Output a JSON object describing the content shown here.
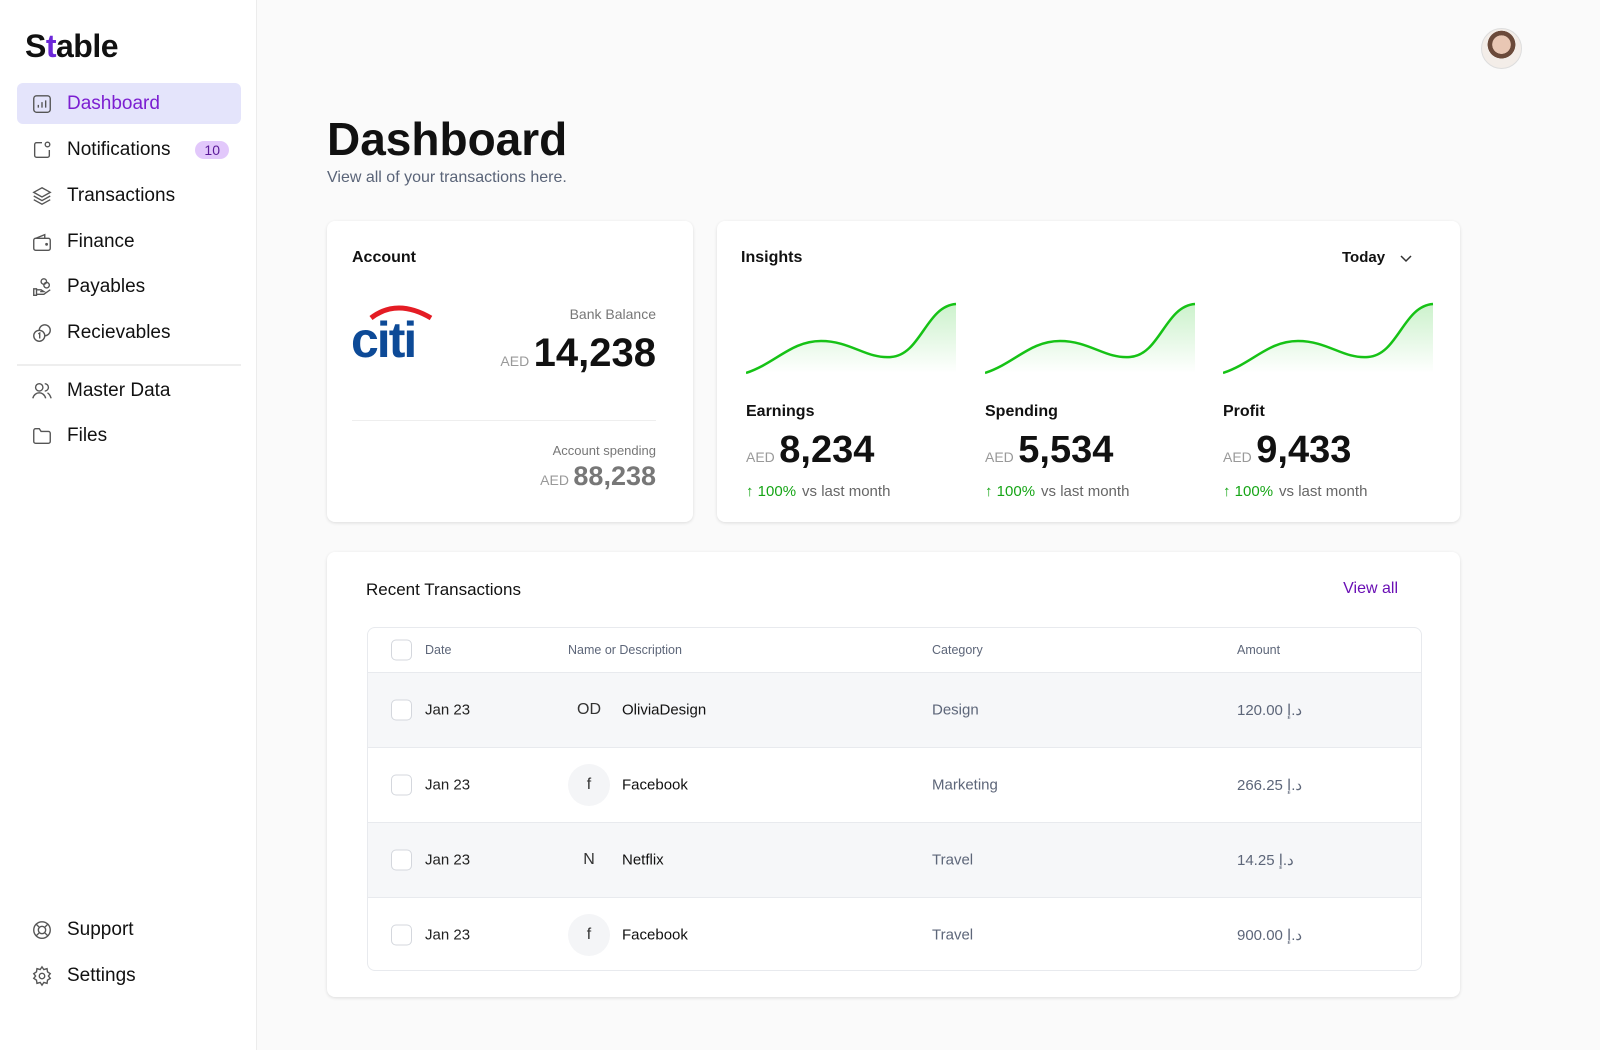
{
  "brand": {
    "name_pre": "S",
    "name_t": "t",
    "name_post": "able"
  },
  "sidebar": {
    "items": [
      {
        "label": "Dashboard",
        "icon": "chart-icon",
        "active": true
      },
      {
        "label": "Notifications",
        "icon": "notification-icon",
        "badge": "10"
      },
      {
        "label": "Transactions",
        "icon": "layers-icon"
      },
      {
        "label": "Finance",
        "icon": "wallet-icon"
      },
      {
        "label": "Payables",
        "icon": "hand-coins-icon"
      },
      {
        "label": "Recievables",
        "icon": "coins-icon"
      },
      {
        "label": "Master Data",
        "icon": "users-icon"
      },
      {
        "label": "Files",
        "icon": "folder-icon"
      }
    ],
    "bottom": [
      {
        "label": "Support",
        "icon": "lifebuoy-icon"
      },
      {
        "label": "Settings",
        "icon": "gear-icon"
      }
    ]
  },
  "header": {
    "title": "Dashboard",
    "subtitle": "View all of your transactions here."
  },
  "account": {
    "title": "Account",
    "bank_logo": "citi",
    "balance_label": "Bank Balance",
    "currency": "AED",
    "balance": "14,238",
    "spending_label": "Account spending",
    "spending": "88,238"
  },
  "insights": {
    "title": "Insights",
    "period": "Today",
    "accent": "#16c216",
    "cards": [
      {
        "label": "Earnings",
        "currency": "AED",
        "value": "8,234",
        "change": "100%",
        "change_label": "vs last month"
      },
      {
        "label": "Spending",
        "currency": "AED",
        "value": "5,534",
        "change": "100%",
        "change_label": "vs last month"
      },
      {
        "label": "Profit",
        "currency": "AED",
        "value": "9,433",
        "change": "100%",
        "change_label": "vs last month"
      }
    ]
  },
  "transactions": {
    "title": "Recent Transactions",
    "view_all": "View all",
    "columns": [
      "Date",
      "Name or Description",
      "Category",
      "Amount"
    ],
    "rows": [
      {
        "date": "Jan 23",
        "initials": "OD",
        "name": "OliviaDesign",
        "category": "Design",
        "amount": "120.00 د.إ"
      },
      {
        "date": "Jan 23",
        "initials": "f",
        "name": "Facebook",
        "category": "Marketing",
        "amount": "266.25 د.إ"
      },
      {
        "date": "Jan 23",
        "initials": "N",
        "name": "Netflix",
        "category": "Travel",
        "amount": "14.25 د.إ"
      },
      {
        "date": "Jan 23",
        "initials": "f",
        "name": "Facebook",
        "category": "Travel",
        "amount": "900.00 د.إ"
      }
    ]
  }
}
